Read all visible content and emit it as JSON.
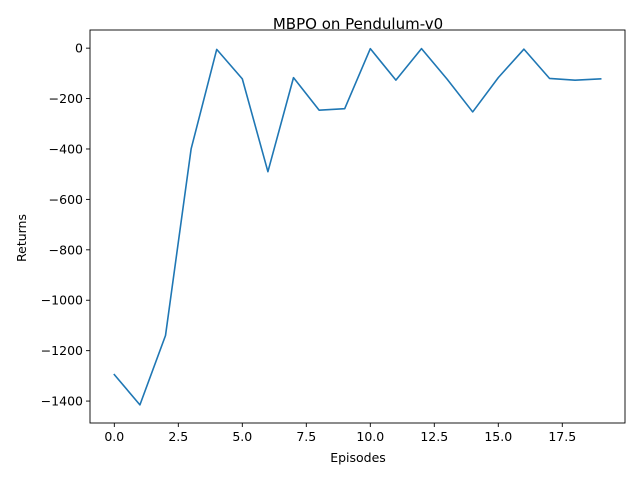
{
  "chart_data": {
    "type": "line",
    "title": "MBPO on Pendulum-v0",
    "xlabel": "Episodes",
    "ylabel": "Returns",
    "xlim": [
      -0.95,
      19.95
    ],
    "ylim": [
      -1487,
      72
    ],
    "grid": false,
    "xticks": [
      0.0,
      2.5,
      5.0,
      7.5,
      10.0,
      12.5,
      15.0,
      17.5
    ],
    "xtick_labels": [
      "0.0",
      "2.5",
      "5.0",
      "7.5",
      "10.0",
      "12.5",
      "15.0",
      "17.5"
    ],
    "yticks": [
      0,
      -200,
      -400,
      -600,
      -800,
      -1000,
      -1200,
      -1400
    ],
    "ytick_labels": [
      "0",
      "−200",
      "−400",
      "−600",
      "−800",
      "−1000",
      "−1200",
      "−1400"
    ],
    "series": [
      {
        "color": "#1f77b4",
        "x": [
          0,
          1,
          2,
          3,
          4,
          5,
          6,
          7,
          8,
          9,
          10,
          11,
          12,
          13,
          14,
          15,
          16,
          17,
          18,
          19
        ],
        "y": [
          -1295,
          -1415,
          -1140,
          -400,
          -5,
          -122,
          -490,
          -117,
          -246,
          -240,
          -2,
          -127,
          -2,
          -123,
          -253,
          -117,
          -4,
          -120,
          -127,
          -122
        ]
      }
    ]
  }
}
